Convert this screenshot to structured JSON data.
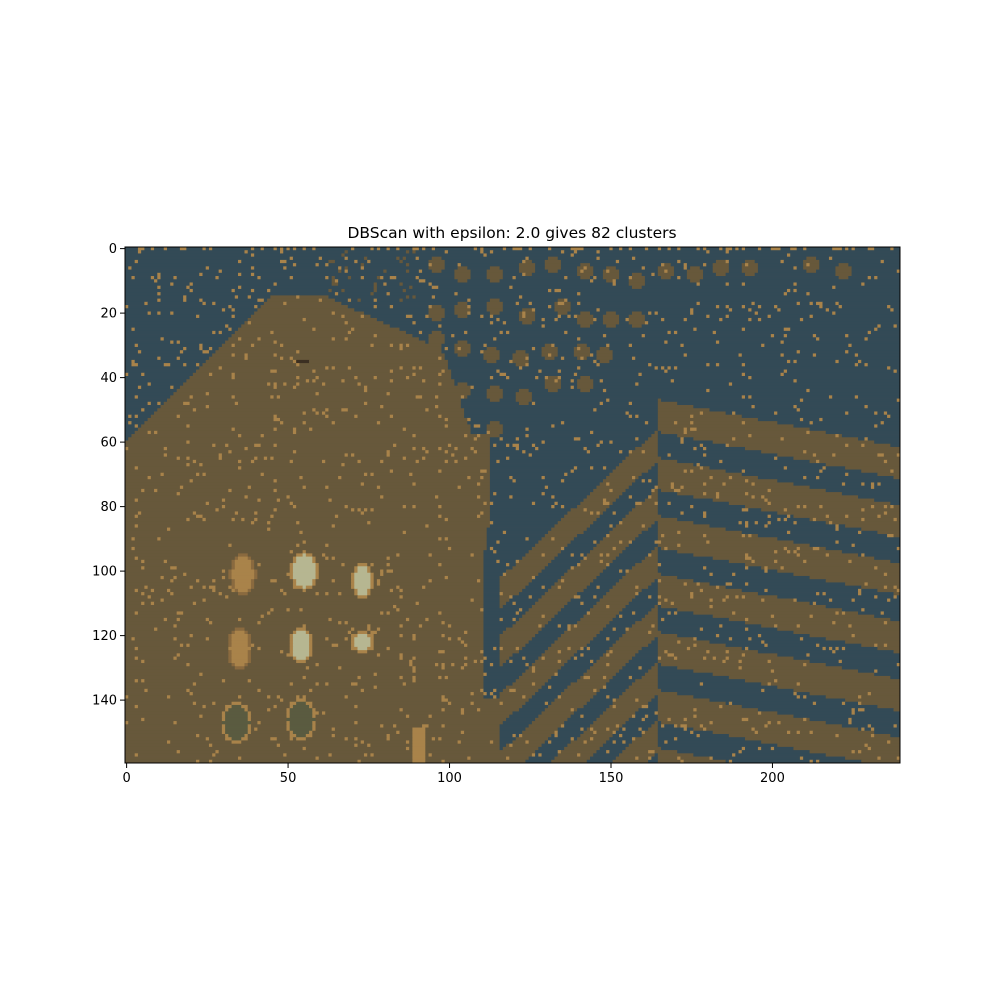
{
  "chart_data": {
    "type": "heatmap",
    "title": "DBScan with epsilon: 2.0 gives 82 clusters",
    "xlabel": "",
    "ylabel": "",
    "image_shape": [
      160,
      240
    ],
    "xlim": [
      -0.5,
      239.5
    ],
    "ylim": [
      159.5,
      -0.5
    ],
    "x_ticks": [
      0,
      50,
      100,
      150,
      200
    ],
    "y_ticks": [
      0,
      20,
      40,
      60,
      80,
      100,
      120,
      140
    ],
    "grid": false,
    "colors": {
      "background_cluster": "#334a56",
      "main_cluster": "#67583b",
      "noise_cluster": "#a9834a",
      "pale_cluster": "#b6b691",
      "olive_cluster": "#5a5b40",
      "dark_cluster": "#3b2f22"
    }
  }
}
